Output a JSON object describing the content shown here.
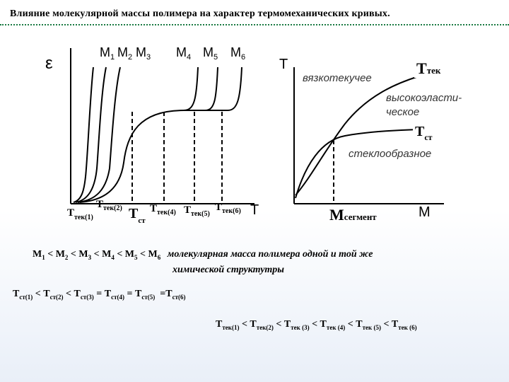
{
  "title": "Влияние молекулярной массы полимера на характер термомеханических кривых.",
  "left_diagram": {
    "y_axis_label": "ε",
    "x_axis_label": "T",
    "curves": [
      {
        "label": "M",
        "sub": "1"
      },
      {
        "label": "M",
        "sub": "2"
      },
      {
        "label": "M",
        "sub": "3"
      },
      {
        "label": "M",
        "sub": "4"
      },
      {
        "label": "M",
        "sub": "5"
      },
      {
        "label": "M",
        "sub": "6"
      }
    ],
    "x_ticks": [
      {
        "label": "T",
        "sub": "тек(1)"
      },
      {
        "label": "T",
        "sub": "тек(2)"
      },
      {
        "label": "T",
        "sub": "ст"
      },
      {
        "label": "T",
        "sub": "тек(4)"
      },
      {
        "label": "T",
        "sub": "тек(5)"
      },
      {
        "label": "T",
        "sub": "тек(6)"
      }
    ]
  },
  "right_diagram": {
    "y_axis_label": "T",
    "x_axis_label": "M",
    "x_tick": {
      "label": "M",
      "sub": "сегмент"
    },
    "curve_tek": {
      "label": "T",
      "sub": "тек"
    },
    "curve_st": {
      "label": "T",
      "sub": "ст"
    },
    "region_viscous": "вязкотекучее",
    "region_elastic_1": "высокоэласти-",
    "region_elastic_2": "ческое",
    "region_glassy": "стеклообразное"
  },
  "notes": {
    "m_order": [
      "M",
      "1",
      " < M",
      "2",
      " < M",
      "3",
      " < M",
      "4",
      " < M",
      "5",
      " < M",
      "6"
    ],
    "m_caption_1": "молекулярная масса полимера одной и той же",
    "m_caption_2": "химической структутры",
    "tst_order": [
      "T",
      "ст(1)",
      " < T",
      "ст(2)",
      " < T",
      "ст(3)",
      " = T",
      "ст(4)",
      " = T",
      "ст(5)",
      "  =T",
      "ст(6)"
    ],
    "ttek_order": [
      "T",
      "тек(1)",
      " < T",
      "тек(2)",
      " < T",
      "тек (3)",
      " < T",
      "тек (4)",
      " < T",
      "тек (5)",
      " < T",
      "тек (6)"
    ]
  },
  "colors": {
    "line": "#000000",
    "title_rule": "#1a7a43",
    "region_text": "#333333"
  }
}
